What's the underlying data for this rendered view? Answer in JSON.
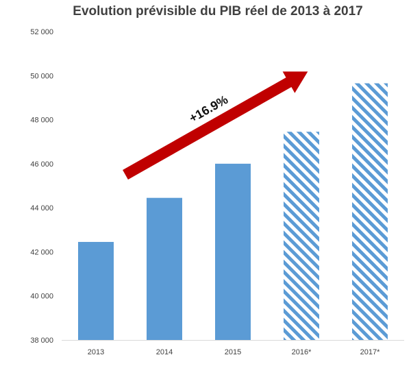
{
  "chart_data": {
    "type": "bar",
    "title": "Evolution prévisible du PIB réel de 2013 à 2017",
    "xlabel": "",
    "ylabel": "",
    "categories": [
      "2013",
      "2014",
      "2015",
      "2016*",
      "2017*"
    ],
    "values": [
      42450,
      44450,
      46000,
      47450,
      49650
    ],
    "forecast": [
      false,
      false,
      false,
      true,
      true
    ],
    "ylim": [
      38000,
      52000
    ],
    "yticks": [
      38000,
      40000,
      42000,
      44000,
      46000,
      48000,
      50000,
      52000
    ],
    "ytick_labels": [
      "38 000",
      "40 000",
      "42 000",
      "44 000",
      "46 000",
      "48 000",
      "50 000",
      "52 000"
    ],
    "grid": false,
    "legend": "none",
    "annotation": {
      "text": "+16.9%",
      "shape": "arrow"
    },
    "colors": {
      "bar": "#5b9bd5",
      "arrow": "#c00000",
      "axis": "#d9d9d9",
      "text": "#404040"
    }
  }
}
